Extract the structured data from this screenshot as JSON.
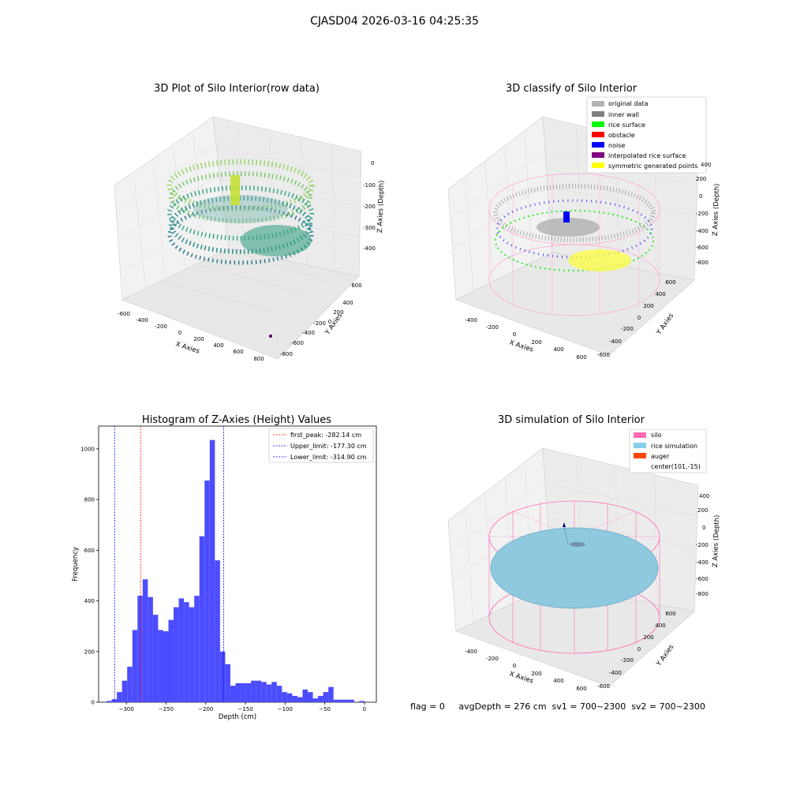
{
  "figure": {
    "title": "CJASD04 2026-03-16 04:25:35"
  },
  "panels": {
    "raw": {
      "title": "3D Plot of Silo Interior(row data)",
      "xlabel": "X Axies",
      "ylabel": "Y Axies",
      "zlabel": "Z Axies (Depth)",
      "xticks": [
        "-600",
        "-400",
        "-200",
        "0",
        "200",
        "400",
        "600",
        "800"
      ],
      "yticks": [
        "600",
        "400",
        "200",
        "0",
        "-200",
        "-400",
        "-600",
        "-800"
      ],
      "zticks": [
        "0",
        "-100",
        "-200",
        "-300",
        "-400"
      ]
    },
    "classify": {
      "title": "3D classify of Silo Interior",
      "xlabel": "X Axies",
      "ylabel": "Y Axies",
      "zlabel": "Z Axies (Depth)",
      "xticks": [
        "-400",
        "-200",
        "0",
        "200",
        "400",
        "600"
      ],
      "yticks": [
        "600",
        "400",
        "200",
        "0",
        "-200",
        "-400",
        "-600"
      ],
      "zticks": [
        "400",
        "200",
        "0",
        "-200",
        "-400",
        "-600",
        "-800"
      ],
      "legend": [
        {
          "label": "original data",
          "color": "#b3b3b3"
        },
        {
          "label": "inner wall",
          "color": "#808080"
        },
        {
          "label": "rice surface",
          "color": "#00ff00"
        },
        {
          "label": "obstacle",
          "color": "#ff0000"
        },
        {
          "label": "noise",
          "color": "#0000ff"
        },
        {
          "label": "interpolated rice surface",
          "color": "#800080"
        },
        {
          "label": "symmetric generated points",
          "color": "#ffff00"
        }
      ]
    },
    "simulation": {
      "title": "3D simulation of Silo Interior",
      "xlabel": "X Axies",
      "ylabel": "Y Axies",
      "zlabel": "Z Axies (Depth)",
      "xticks": [
        "-400",
        "-200",
        "0",
        "200",
        "400",
        "600"
      ],
      "yticks": [
        "600",
        "400",
        "200",
        "0",
        "-200",
        "-400",
        "-600"
      ],
      "zticks": [
        "400",
        "200",
        "0",
        "-200",
        "-400",
        "-600",
        "-800"
      ],
      "legend": [
        {
          "label": "silo",
          "color": "#ff69b4"
        },
        {
          "label": "rice simulation",
          "color": "#87ceeb"
        },
        {
          "label": "auger",
          "color": "#ff4500"
        },
        {
          "label": "center(101,-15)",
          "color": ""
        }
      ]
    }
  },
  "chart_data": [
    {
      "type": "bar",
      "title": "Histogram of Z-Axies (Height) Values",
      "xlabel": "Depth (cm)",
      "ylabel": "Frequency",
      "xlim": [
        -335,
        15
      ],
      "ylim": [
        0,
        1090
      ],
      "xticks": [
        -300,
        -250,
        -200,
        -150,
        -100,
        -50,
        0
      ],
      "yticks": [
        0,
        200,
        400,
        600,
        800,
        1000
      ],
      "bar_color": "#4c4cff",
      "bin_width": 6.5,
      "bins_start": -325.0,
      "values": [
        5,
        12,
        40,
        85,
        140,
        285,
        420,
        485,
        415,
        345,
        285,
        280,
        325,
        375,
        410,
        395,
        375,
        420,
        655,
        875,
        1035,
        560,
        200,
        150,
        65,
        75,
        75,
        75,
        85,
        85,
        80,
        70,
        80,
        65,
        40,
        35,
        25,
        20,
        50,
        40,
        15,
        25,
        40,
        60,
        10,
        10,
        10,
        10,
        0,
        5,
        0
      ],
      "vlines": [
        {
          "label": "first_peak: -282.14 cm",
          "x": -282.14,
          "color": "#ff0000"
        },
        {
          "label": "Upper_limit: -177.30 cm",
          "x": -177.3,
          "color": "#0000ff"
        },
        {
          "label": "Lower_limit: -314.90 cm",
          "x": -314.9,
          "color": "#0000ff"
        }
      ],
      "grid": false,
      "legend_position": "top-right"
    }
  ],
  "footer": {
    "text": "flag = 0     avgDepth = 276 cm  sv1 = 700~2300  sv2 = 700~2300"
  }
}
